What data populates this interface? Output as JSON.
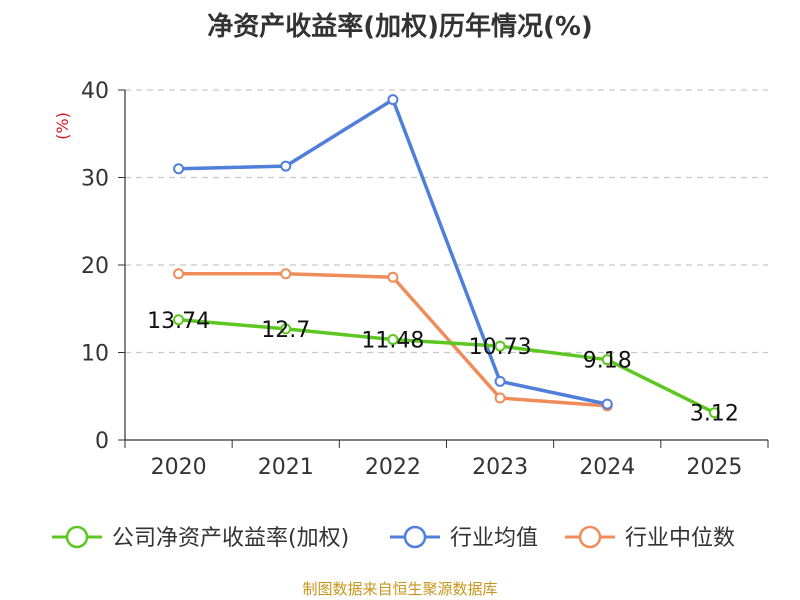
{
  "chart_data": {
    "type": "line",
    "title": "净资产收益率(加权)历年情况(%)",
    "ylabel": "(%)",
    "xlabel": "",
    "categories": [
      "2020",
      "2021",
      "2022",
      "2023",
      "2024",
      "2025"
    ],
    "ylim": [
      0,
      40
    ],
    "yticks": [
      0,
      10,
      20,
      30,
      40
    ],
    "grid": true,
    "legend_position": "bottom",
    "series": [
      {
        "name": "公司净资产收益率(加权)",
        "color": "#5dc722",
        "values": [
          13.74,
          12.7,
          11.48,
          10.73,
          9.18,
          3.12
        ],
        "labels": [
          "13.74",
          "12.7",
          "11.48",
          "10.73",
          "9.18",
          "3.12"
        ]
      },
      {
        "name": "行业均值",
        "color": "#4f7fd9",
        "values": [
          31.0,
          31.3,
          38.9,
          6.7,
          4.1,
          null
        ]
      },
      {
        "name": "行业中位数",
        "color": "#f08c5a",
        "values": [
          19.0,
          19.0,
          18.6,
          4.8,
          3.9,
          null
        ]
      }
    ],
    "source": "制图数据来自恒生聚源数据库"
  }
}
